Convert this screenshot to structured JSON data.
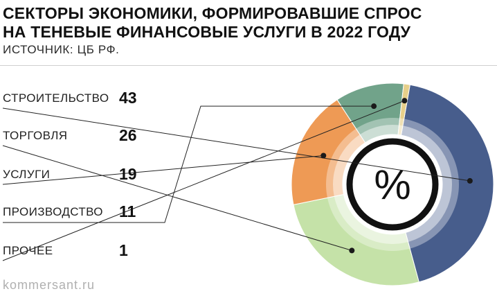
{
  "chart_data": {
    "type": "pie",
    "title": "СЕКТОРЫ ЭКОНОМИКИ, ФОРМИРОВАВШИЕ СПРОС НА ТЕНЕВЫЕ ФИНАНСОВЫЕ УСЛУГИ В 2022 ГОДУ",
    "title_lines": [
      "СЕКТОРЫ ЭКОНОМИКИ, ФОРМИРОВАВШИЕ СПРОС",
      "НА ТЕНЕВЫЕ ФИНАНСОВЫЕ УСЛУГИ В 2022 ГОДУ"
    ],
    "subtitle": "ИСТОЧНИК: ЦБ РФ.",
    "center_label": "%",
    "categories": [
      "СТРОИТЕЛЬСТВО",
      "ТОРГОВЛЯ",
      "УСЛУГИ",
      "ПРОИЗВОДСТВО",
      "ПРОЧЕЕ"
    ],
    "values": [
      43,
      26,
      19,
      11,
      1
    ],
    "colors": [
      "#475d8c",
      "#c5e2a8",
      "#ee9a55",
      "#71a38a",
      "#e6cf8a"
    ]
  },
  "footer": "kommersant.ru"
}
